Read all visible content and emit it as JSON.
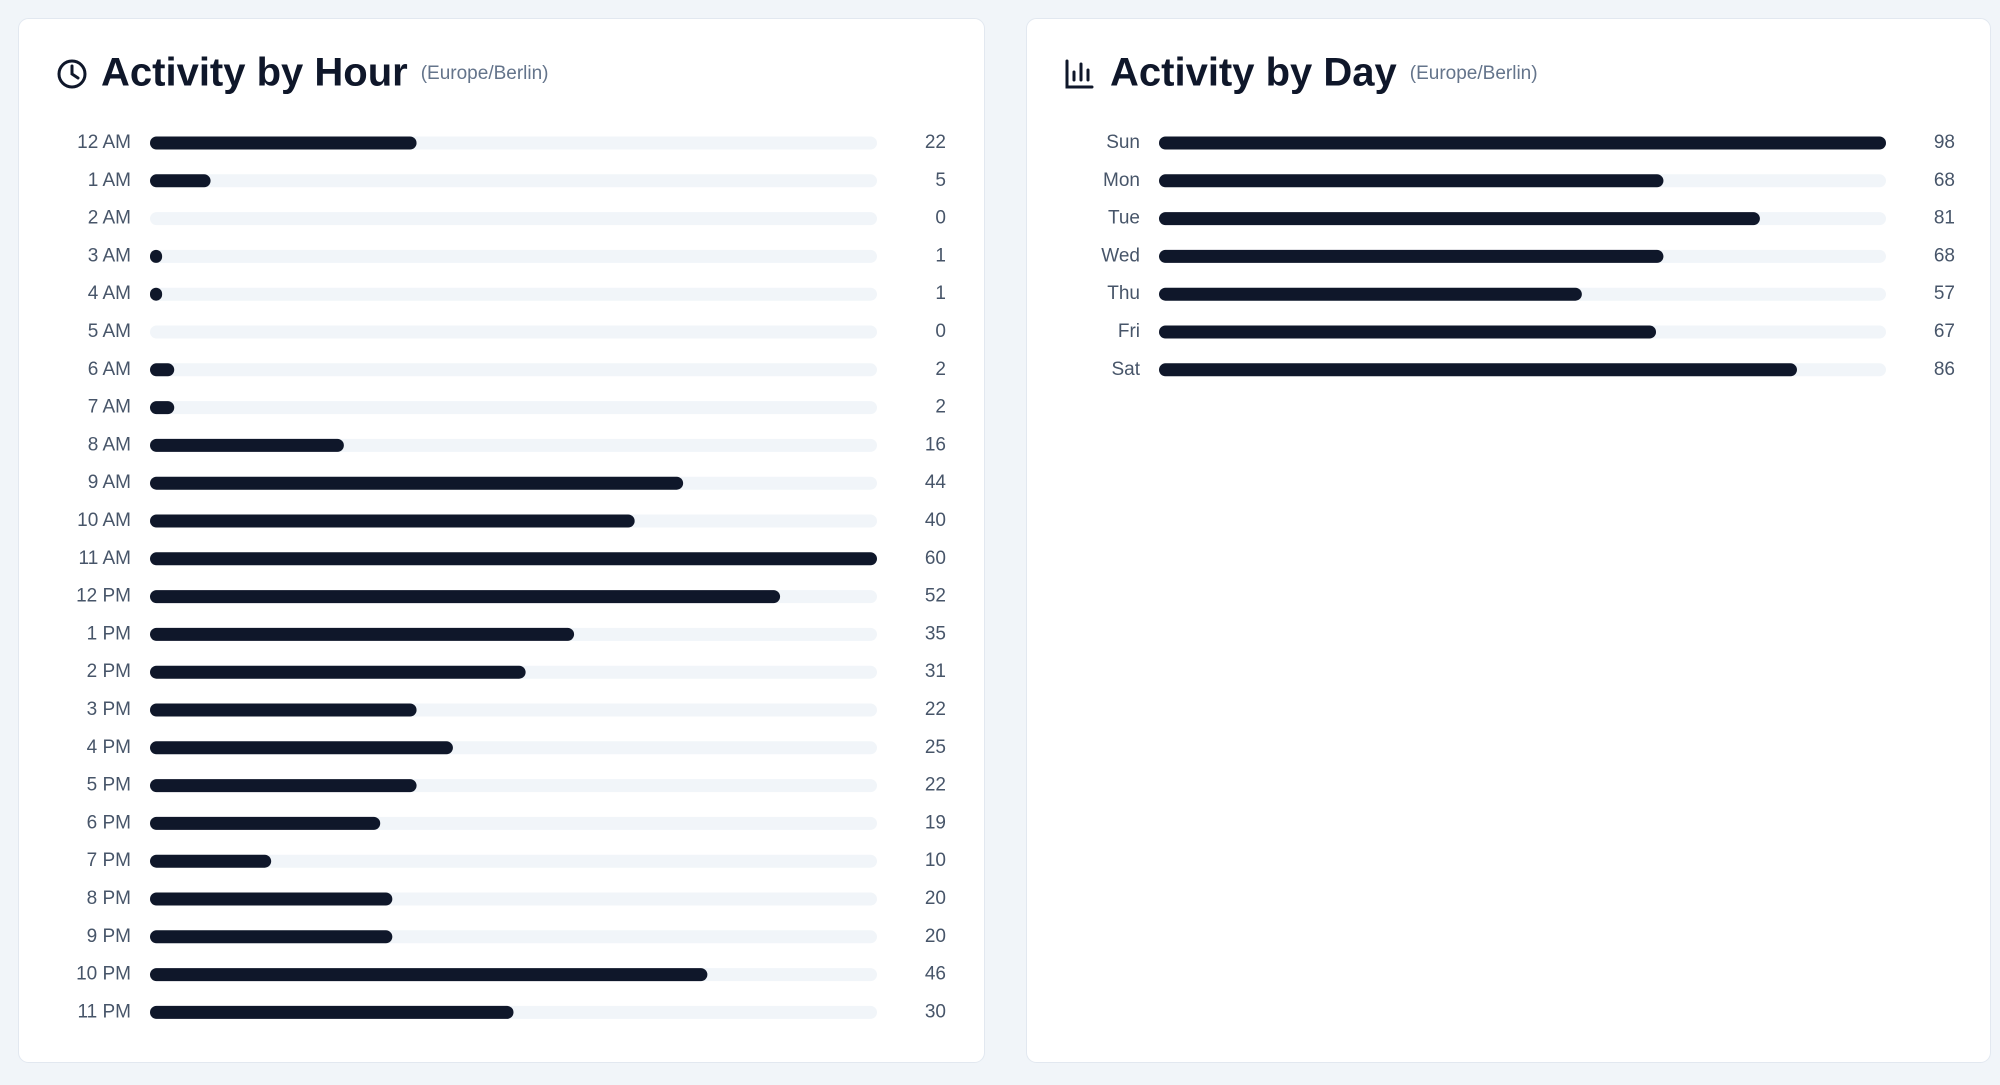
{
  "chart_data": [
    {
      "type": "bar",
      "orientation": "horizontal",
      "title": "Activity by Hour",
      "subtitle": "(Europe/Berlin)",
      "categories": [
        "12 AM",
        "1 AM",
        "2 AM",
        "3 AM",
        "4 AM",
        "5 AM",
        "6 AM",
        "7 AM",
        "8 AM",
        "9 AM",
        "10 AM",
        "11 AM",
        "12 PM",
        "1 PM",
        "2 PM",
        "3 PM",
        "4 PM",
        "5 PM",
        "6 PM",
        "7 PM",
        "8 PM",
        "9 PM",
        "10 PM",
        "11 PM"
      ],
      "values": [
        22,
        5,
        0,
        1,
        1,
        0,
        2,
        2,
        16,
        44,
        40,
        60,
        52,
        35,
        31,
        22,
        25,
        22,
        19,
        10,
        20,
        20,
        46,
        30
      ],
      "color": "#0f172a",
      "xlim": [
        0,
        60
      ]
    },
    {
      "type": "bar",
      "orientation": "horizontal",
      "title": "Activity by Day",
      "subtitle": "(Europe/Berlin)",
      "categories": [
        "Sun",
        "Mon",
        "Tue",
        "Wed",
        "Thu",
        "Fri",
        "Sat"
      ],
      "values": [
        98,
        68,
        81,
        68,
        57,
        67,
        86
      ],
      "color": "#0f172a",
      "xlim": [
        0,
        98
      ]
    }
  ]
}
